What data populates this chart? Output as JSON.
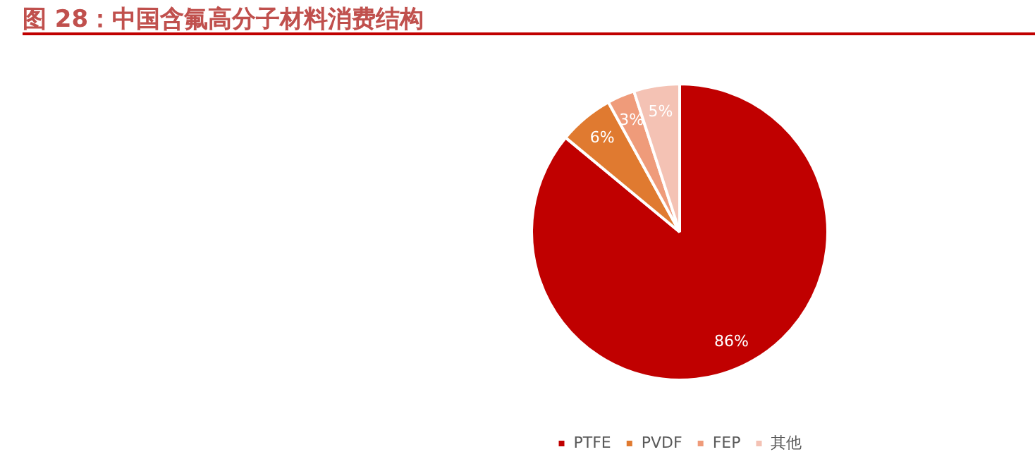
{
  "chart_data": {
    "type": "pie",
    "title": "图 28：中国含氟高分子材料消费结构",
    "categories": [
      "PTFE",
      "PVDF",
      "FEP",
      "其他"
    ],
    "values": [
      86,
      6,
      3,
      5
    ],
    "colors": [
      "#c00000",
      "#e07a30",
      "#ef9b7a",
      "#f4c2b4"
    ],
    "value_labels": [
      "86%",
      "6%",
      "3%",
      "5%"
    ],
    "legend": "bottom"
  }
}
